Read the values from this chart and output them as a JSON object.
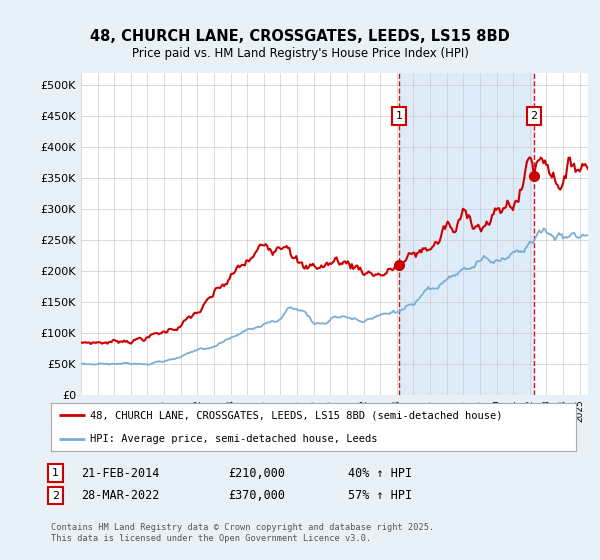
{
  "title": "48, CHURCH LANE, CROSSGATES, LEEDS, LS15 8BD",
  "subtitle": "Price paid vs. HM Land Registry's House Price Index (HPI)",
  "red_label": "48, CHURCH LANE, CROSSGATES, LEEDS, LS15 8BD (semi-detached house)",
  "blue_label": "HPI: Average price, semi-detached house, Leeds",
  "sale1_date": "21-FEB-2014",
  "sale1_price": 210000,
  "sale1_hpi": "40% ↑ HPI",
  "sale2_date": "28-MAR-2022",
  "sale2_price": 370000,
  "sale2_hpi": "57% ↑ HPI",
  "xmin": 1995,
  "xmax": 2025.5,
  "ymin": 0,
  "ymax": 520000,
  "yticks": [
    0,
    50000,
    100000,
    150000,
    200000,
    250000,
    300000,
    350000,
    400000,
    450000,
    500000
  ],
  "background_color": "#e8f0f8",
  "plot_bg_color": "#ffffff",
  "shade_color": "#d0e4f7",
  "grid_color": "#cccccc",
  "red_color": "#cc0000",
  "blue_color": "#7aaed6",
  "dashed_color": "#cc0000",
  "footer": "Contains HM Land Registry data © Crown copyright and database right 2025.\nThis data is licensed under the Open Government Licence v3.0.",
  "sale1_x": 2014.13,
  "sale2_x": 2022.25
}
